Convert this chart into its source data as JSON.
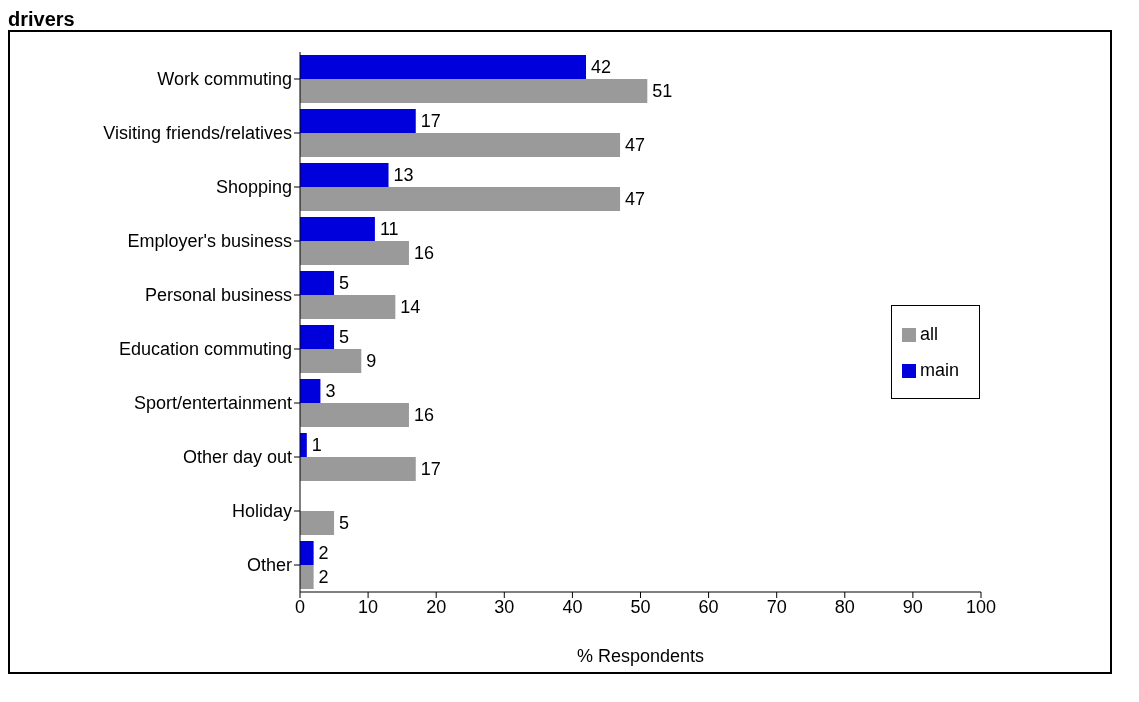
{
  "chart_data": {
    "type": "bar",
    "orientation": "horizontal",
    "title": "drivers",
    "xlabel": "% Respondents",
    "categories": [
      "Work commuting",
      "Visiting friends/relatives",
      "Shopping",
      "Employer's business",
      "Personal business",
      "Education commuting",
      "Sport/entertainment",
      "Other day out",
      "Holiday",
      "Other"
    ],
    "series": [
      {
        "name": "main",
        "color": "#0000dd",
        "values": [
          42,
          17,
          13,
          11,
          5,
          5,
          3,
          1,
          null,
          2
        ]
      },
      {
        "name": "all",
        "color": "#9a9a9a",
        "values": [
          51,
          47,
          47,
          16,
          14,
          9,
          16,
          17,
          5,
          2
        ]
      }
    ],
    "xlim": [
      0,
      100
    ],
    "xticks": [
      0,
      10,
      20,
      30,
      40,
      50,
      60,
      70,
      80,
      90,
      100
    ],
    "data_labels": true,
    "grid": false,
    "legend": "right"
  }
}
